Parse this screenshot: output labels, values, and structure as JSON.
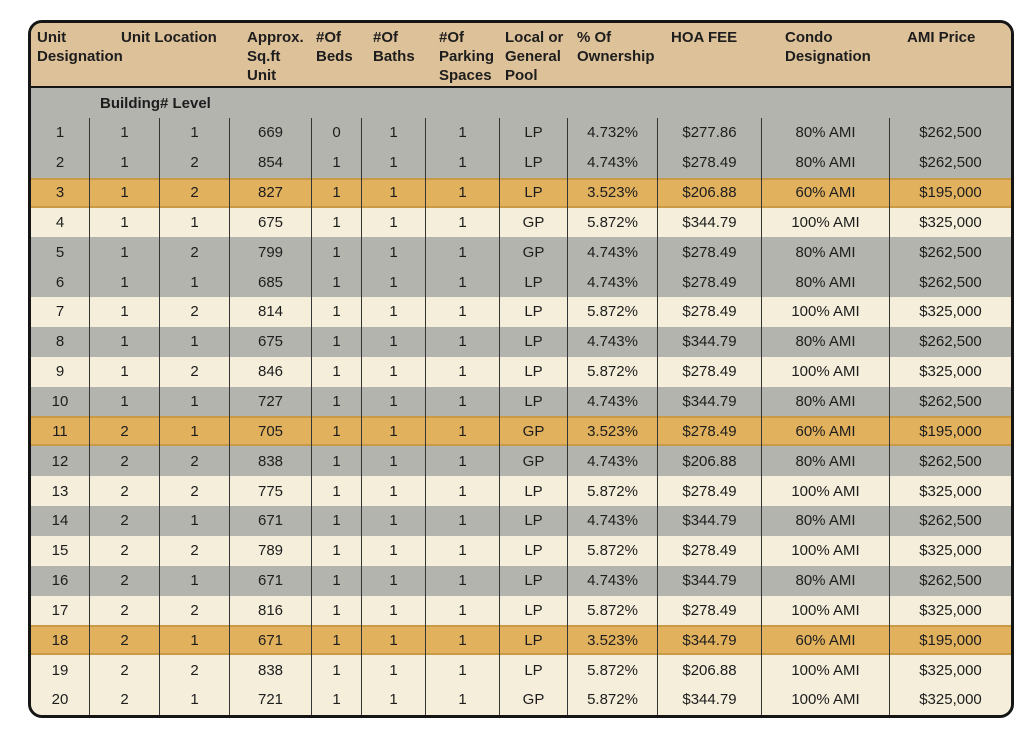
{
  "colors": {
    "frame": "#151515",
    "header_bg": "#ddc199",
    "row_gray": "#b4b4ae",
    "row_cream": "#f4eeda",
    "row_gold_highlight": "#e1b15d",
    "divider": "#353535",
    "text": "#1d1d1d"
  },
  "header": {
    "cols": [
      {
        "label": "Unit\nDesignation"
      },
      {
        "label": "Unit Location"
      },
      {
        "label": "Approx.\nSq.ft\nUnit"
      },
      {
        "label": "#Of\nBeds"
      },
      {
        "label": "#Of\nBaths"
      },
      {
        "label": "#Of\nParking\nSpaces"
      },
      {
        "label": "Local or\nGeneral\nPool"
      },
      {
        "label": "% Of\nOwnership"
      },
      {
        "label": "HOA FEE"
      },
      {
        "label": "Condo\nDesignation"
      },
      {
        "label": "AMI Price"
      }
    ]
  },
  "subheader": {
    "label": "Building# Level"
  },
  "rows": [
    {
      "tone": "gray",
      "cells": [
        "1",
        "1",
        "1",
        "669",
        "0",
        "1",
        "1",
        "LP",
        "4.732%",
        "$277.86",
        "80% AMI",
        "$262,500"
      ]
    },
    {
      "tone": "gray",
      "cells": [
        "2",
        "1",
        "2",
        "854",
        "1",
        "1",
        "1",
        "LP",
        "4.743%",
        "$278.49",
        "80% AMI",
        "$262,500"
      ]
    },
    {
      "tone": "gold",
      "cells": [
        "3",
        "1",
        "2",
        "827",
        "1",
        "1",
        "1",
        "LP",
        "3.523%",
        "$206.88",
        "60% AMI",
        "$195,000"
      ]
    },
    {
      "tone": "cream",
      "cells": [
        "4",
        "1",
        "1",
        "675",
        "1",
        "1",
        "1",
        "GP",
        "5.872%",
        "$344.79",
        "100% AMI",
        "$325,000"
      ]
    },
    {
      "tone": "gray",
      "cells": [
        "5",
        "1",
        "2",
        "799",
        "1",
        "1",
        "1",
        "GP",
        "4.743%",
        "$278.49",
        "80% AMI",
        "$262,500"
      ]
    },
    {
      "tone": "gray",
      "cells": [
        "6",
        "1",
        "1",
        "685",
        "1",
        "1",
        "1",
        "LP",
        "4.743%",
        "$278.49",
        "80% AMI",
        "$262,500"
      ]
    },
    {
      "tone": "cream",
      "cells": [
        "7",
        "1",
        "2",
        "814",
        "1",
        "1",
        "1",
        "LP",
        "5.872%",
        "$278.49",
        "100% AMI",
        "$325,000"
      ]
    },
    {
      "tone": "gray",
      "cells": [
        "8",
        "1",
        "1",
        "675",
        "1",
        "1",
        "1",
        "LP",
        "4.743%",
        "$344.79",
        "80% AMI",
        "$262,500"
      ]
    },
    {
      "tone": "cream",
      "cells": [
        "9",
        "1",
        "2",
        "846",
        "1",
        "1",
        "1",
        "LP",
        "5.872%",
        "$278.49",
        "100% AMI",
        "$325,000"
      ]
    },
    {
      "tone": "gray",
      "cells": [
        "10",
        "1",
        "1",
        "727",
        "1",
        "1",
        "1",
        "LP",
        "4.743%",
        "$344.79",
        "80% AMI",
        "$262,500"
      ]
    },
    {
      "tone": "gold",
      "cells": [
        "11",
        "2",
        "1",
        "705",
        "1",
        "1",
        "1",
        "GP",
        "3.523%",
        "$278.49",
        "60% AMI",
        "$195,000"
      ]
    },
    {
      "tone": "gray",
      "cells": [
        "12",
        "2",
        "2",
        "838",
        "1",
        "1",
        "1",
        "GP",
        "4.743%",
        "$206.88",
        "80% AMI",
        "$262,500"
      ]
    },
    {
      "tone": "cream",
      "cells": [
        "13",
        "2",
        "2",
        "775",
        "1",
        "1",
        "1",
        "LP",
        "5.872%",
        "$278.49",
        "100% AMI",
        "$325,000"
      ]
    },
    {
      "tone": "gray",
      "cells": [
        "14",
        "2",
        "1",
        "671",
        "1",
        "1",
        "1",
        "LP",
        "4.743%",
        "$344.79",
        "80% AMI",
        "$262,500"
      ]
    },
    {
      "tone": "cream",
      "cells": [
        "15",
        "2",
        "2",
        "789",
        "1",
        "1",
        "1",
        "LP",
        "5.872%",
        "$278.49",
        "100% AMI",
        "$325,000"
      ]
    },
    {
      "tone": "gray",
      "cells": [
        "16",
        "2",
        "1",
        "671",
        "1",
        "1",
        "1",
        "LP",
        "4.743%",
        "$344.79",
        "80% AMI",
        "$262,500"
      ]
    },
    {
      "tone": "cream",
      "cells": [
        "17",
        "2",
        "2",
        "816",
        "1",
        "1",
        "1",
        "LP",
        "5.872%",
        "$278.49",
        "100% AMI",
        "$325,000"
      ]
    },
    {
      "tone": "gold",
      "cells": [
        "18",
        "2",
        "1",
        "671",
        "1",
        "1",
        "1",
        "LP",
        "3.523%",
        "$344.79",
        "60% AMI",
        "$195,000"
      ]
    },
    {
      "tone": "cream",
      "cells": [
        "19",
        "2",
        "2",
        "838",
        "1",
        "1",
        "1",
        "LP",
        "5.872%",
        "$206.88",
        "100% AMI",
        "$325,000"
      ]
    },
    {
      "tone": "cream",
      "cells": [
        "20",
        "2",
        "1",
        "721",
        "1",
        "1",
        "1",
        "GP",
        "5.872%",
        "$344.79",
        "100% AMI",
        "$325,000"
      ]
    }
  ]
}
